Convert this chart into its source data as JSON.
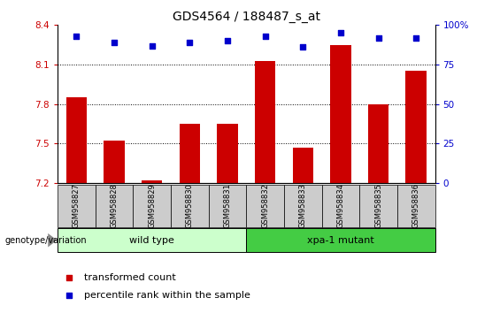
{
  "title": "GDS4564 / 188487_s_at",
  "samples": [
    "GSM958827",
    "GSM958828",
    "GSM958829",
    "GSM958830",
    "GSM958831",
    "GSM958832",
    "GSM958833",
    "GSM958834",
    "GSM958835",
    "GSM958836"
  ],
  "transformed_count": [
    7.85,
    7.52,
    7.22,
    7.65,
    7.65,
    8.13,
    7.47,
    8.25,
    7.8,
    8.05
  ],
  "percentile_rank": [
    93,
    89,
    87,
    89,
    90,
    93,
    86,
    95,
    92,
    92
  ],
  "ylim_left": [
    7.2,
    8.4
  ],
  "ylim_right": [
    0,
    100
  ],
  "yticks_left": [
    7.2,
    7.5,
    7.8,
    8.1,
    8.4
  ],
  "yticks_right": [
    0,
    25,
    50,
    75,
    100
  ],
  "bar_color": "#cc0000",
  "dot_color": "#0000cc",
  "wild_type_label": "wild type",
  "xpa_label": "xpa-1 mutant",
  "genotype_label": "genotype/variation",
  "legend_bar_label": "transformed count",
  "legend_dot_label": "percentile rank within the sample",
  "wild_type_color": "#ccffcc",
  "xpa_color": "#44cc44",
  "tick_color_left": "#cc0000",
  "tick_color_right": "#0000cc",
  "title_fontsize": 10,
  "bar_bottom": 7.2
}
